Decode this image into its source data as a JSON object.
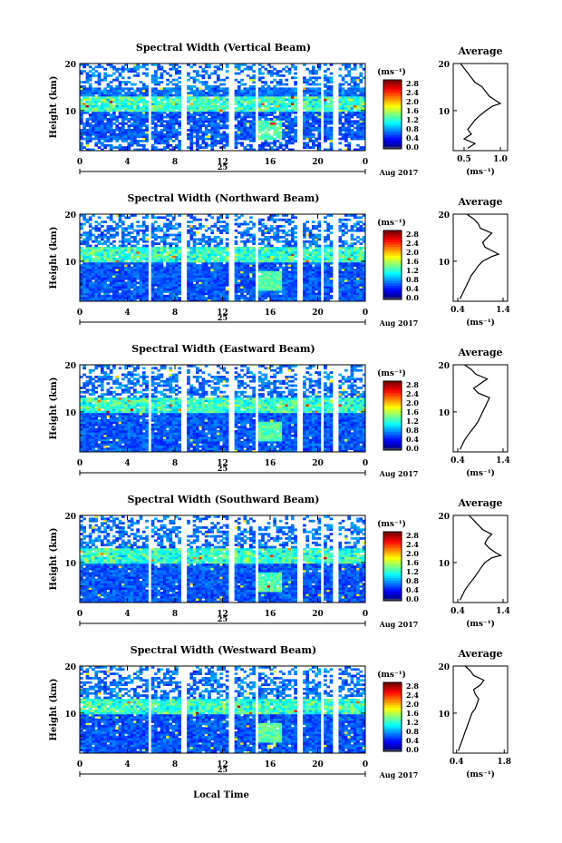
{
  "figure": {
    "x_axis_label": "Local Time",
    "date_label": "Aug 2017",
    "day_label": "25"
  },
  "chart_data": [
    {
      "type": "heatmap",
      "title": "Spectral Width (Vertical Beam)",
      "ylabel": "Height (km)",
      "x_ticks": [
        "0",
        "4",
        "8",
        "12",
        "16",
        "20",
        "0"
      ],
      "y_ticks": [
        "20",
        "10"
      ],
      "xlim": [
        0,
        24
      ],
      "ylim": [
        1.5,
        20
      ],
      "colorbar": {
        "unit": "(ms⁻¹)",
        "ticks": [
          "2.8",
          "2.4",
          "2.0",
          "1.6",
          "1.2",
          "0.8",
          "0.4",
          "0.0"
        ]
      },
      "profile": {
        "title": "Average",
        "xlabel": "(ms⁻¹)",
        "x_ticks": [
          "0.5",
          "1.0"
        ],
        "xlim": [
          0.35,
          1.1
        ],
        "y_ticks": [
          "20",
          "10"
        ],
        "h": [
          2,
          3,
          4,
          5,
          6,
          7,
          8,
          9,
          10,
          11,
          11.5,
          12,
          12.5,
          13,
          14,
          15,
          16,
          17,
          18,
          19,
          20
        ],
        "v": [
          0.55,
          0.65,
          0.5,
          0.6,
          0.55,
          0.6,
          0.65,
          0.72,
          0.8,
          0.9,
          1.0,
          0.95,
          0.9,
          0.85,
          0.8,
          0.75,
          0.65,
          0.6,
          0.55,
          0.5,
          0.45
        ]
      }
    },
    {
      "type": "heatmap",
      "title": "Spectral Width (Northward Beam)",
      "ylabel": "Height (km)",
      "x_ticks": [
        "0",
        "4",
        "8",
        "12",
        "16",
        "20",
        "0"
      ],
      "y_ticks": [
        "20",
        "10"
      ],
      "xlim": [
        0,
        24
      ],
      "ylim": [
        1.5,
        20
      ],
      "colorbar": {
        "unit": "(ms⁻¹)",
        "ticks": [
          "2.8",
          "2.4",
          "2.0",
          "1.6",
          "1.2",
          "0.8",
          "0.4",
          "0.0"
        ]
      },
      "profile": {
        "title": "Average",
        "xlabel": "(ms⁻¹)",
        "x_ticks": [
          "0.4",
          "1.4"
        ],
        "xlim": [
          0.3,
          1.5
        ],
        "y_ticks": [
          "20",
          "10"
        ],
        "h": [
          2,
          3,
          4,
          5,
          6,
          7,
          8,
          9,
          10,
          11,
          11.5,
          12,
          13,
          14,
          15,
          16,
          17,
          18,
          19,
          20
        ],
        "v": [
          0.45,
          0.5,
          0.55,
          0.6,
          0.65,
          0.7,
          0.78,
          0.85,
          0.95,
          1.15,
          1.3,
          1.2,
          1.0,
          0.95,
          1.05,
          1.15,
          0.9,
          0.85,
          0.75,
          0.6
        ]
      }
    },
    {
      "type": "heatmap",
      "title": "Spectral Width (Eastward Beam)",
      "ylabel": "Height (km)",
      "x_ticks": [
        "0",
        "4",
        "8",
        "12",
        "16",
        "20",
        "0"
      ],
      "y_ticks": [
        "20",
        "10"
      ],
      "xlim": [
        0,
        24
      ],
      "ylim": [
        1.5,
        20
      ],
      "colorbar": {
        "unit": "(ms⁻¹)",
        "ticks": [
          "2.8",
          "2.4",
          "2.0",
          "1.6",
          "1.2",
          "0.8",
          "0.4",
          "0.0"
        ]
      },
      "profile": {
        "title": "Average",
        "xlabel": "(ms⁻¹)",
        "x_ticks": [
          "0.4",
          "1.4"
        ],
        "xlim": [
          0.3,
          1.5
        ],
        "y_ticks": [
          "20",
          "10"
        ],
        "h": [
          2,
          3,
          4,
          5,
          6,
          7,
          8,
          9,
          10,
          11,
          12,
          13,
          14,
          15,
          16,
          17,
          18,
          19,
          20
        ],
        "v": [
          0.45,
          0.5,
          0.55,
          0.62,
          0.7,
          0.78,
          0.85,
          0.9,
          0.95,
          1.0,
          1.05,
          1.1,
          0.85,
          0.75,
          0.9,
          1.05,
          0.8,
          0.7,
          0.55
        ]
      }
    },
    {
      "type": "heatmap",
      "title": "Spectral Width (Southward Beam)",
      "ylabel": "Height (km)",
      "x_ticks": [
        "0",
        "4",
        "8",
        "12",
        "16",
        "20",
        "0"
      ],
      "y_ticks": [
        "20",
        "10"
      ],
      "xlim": [
        0,
        24
      ],
      "ylim": [
        1.5,
        20
      ],
      "colorbar": {
        "unit": "(ms⁻¹)",
        "ticks": [
          "2.8",
          "2.4",
          "2.0",
          "1.6",
          "1.2",
          "0.8",
          "0.4",
          "0.0"
        ]
      },
      "profile": {
        "title": "Average",
        "xlabel": "(ms⁻¹)",
        "x_ticks": [
          "0.4",
          "1.4"
        ],
        "xlim": [
          0.3,
          1.5
        ],
        "y_ticks": [
          "20",
          "10"
        ],
        "h": [
          2,
          3,
          4,
          5,
          6,
          7,
          8,
          9,
          10,
          11,
          11.5,
          12,
          13,
          14,
          15,
          16,
          17,
          18,
          19,
          20
        ],
        "v": [
          0.45,
          0.5,
          0.55,
          0.62,
          0.7,
          0.78,
          0.85,
          0.92,
          1.0,
          1.15,
          1.35,
          1.25,
          1.1,
          1.0,
          1.05,
          1.15,
          0.95,
          0.85,
          0.75,
          0.65
        ]
      }
    },
    {
      "type": "heatmap",
      "title": "Spectral Width (Westward Beam)",
      "ylabel": "Height (km)",
      "x_ticks": [
        "0",
        "4",
        "8",
        "12",
        "16",
        "20",
        "0"
      ],
      "y_ticks": [
        "20",
        "10"
      ],
      "xlim": [
        0,
        24
      ],
      "ylim": [
        1.5,
        20
      ],
      "colorbar": {
        "unit": "(ms⁻¹)",
        "ticks": [
          "2.8",
          "2.4",
          "2.0",
          "1.6",
          "1.2",
          "0.8",
          "0.4",
          "0.0"
        ]
      },
      "profile": {
        "title": "Average",
        "xlabel": "(ms⁻¹)",
        "x_ticks": [
          "0.4",
          "1.8"
        ],
        "xlim": [
          0.3,
          1.9
        ],
        "y_ticks": [
          "20",
          "10"
        ],
        "h": [
          2,
          3,
          4,
          5,
          6,
          7,
          8,
          9,
          10,
          11,
          12,
          13,
          14,
          15,
          16,
          17,
          18,
          19,
          20
        ],
        "v": [
          0.45,
          0.5,
          0.55,
          0.6,
          0.65,
          0.7,
          0.75,
          0.8,
          0.85,
          0.95,
          1.0,
          1.05,
          0.95,
          0.9,
          1.1,
          1.2,
          0.9,
          0.8,
          0.65
        ]
      }
    }
  ]
}
